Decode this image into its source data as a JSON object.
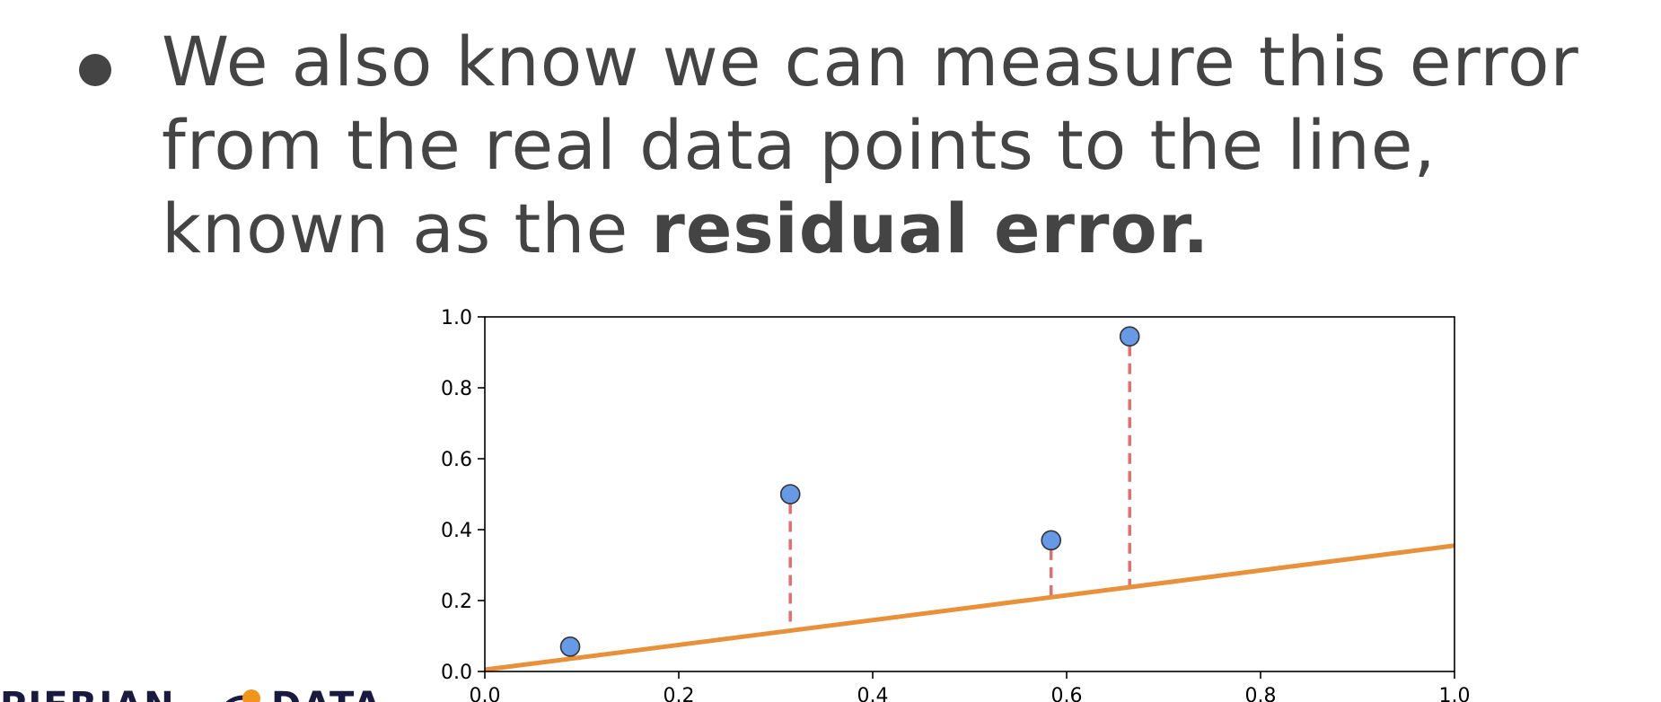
{
  "slide": {
    "line1": "We also know we can measure this error",
    "line2": "from the real data points to the line,",
    "line3_prefix": "known as the ",
    "line3_bold": "residual error."
  },
  "logo": {
    "left_text": "PIERIAN",
    "right_text": "DATA",
    "colors": {
      "text": "#1a1a40",
      "dot": "#f0961e"
    }
  },
  "chart_data": {
    "type": "scatter",
    "title": "",
    "xlabel": "",
    "ylabel": "",
    "xlim": [
      0.0,
      1.0
    ],
    "ylim": [
      0.0,
      1.0
    ],
    "xticks": [
      "0.0",
      "0.2",
      "0.4",
      "0.6",
      "0.8",
      "1.0"
    ],
    "yticks": [
      "0.0",
      "0.2",
      "0.4",
      "0.6",
      "0.8",
      "1.0"
    ],
    "grid": false,
    "points": [
      {
        "x": 0.088,
        "y": 0.07
      },
      {
        "x": 0.315,
        "y": 0.5
      },
      {
        "x": 0.584,
        "y": 0.37
      },
      {
        "x": 0.665,
        "y": 0.945
      }
    ],
    "fit_line": {
      "x": [
        0.0,
        1.0
      ],
      "y": [
        0.005,
        0.355
      ]
    },
    "residuals": "dashed vertical segments from each point to the fit line",
    "colors": {
      "points": "#6699e6",
      "point_edge": "#333333",
      "line": "#e8913a",
      "residual": "#e07070",
      "axes": "#000000"
    }
  }
}
